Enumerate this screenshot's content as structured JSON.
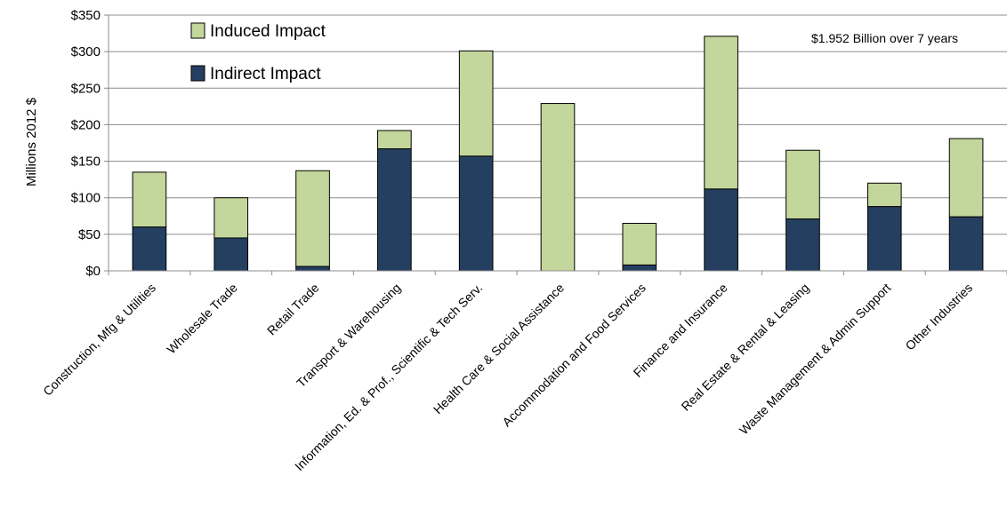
{
  "chart_data": {
    "type": "bar",
    "stacked": true,
    "ylabel": "Millions 2012 $",
    "ylim": [
      0,
      350
    ],
    "yticks": [
      "$0",
      "$50",
      "$100",
      "$150",
      "$200",
      "$250",
      "$300",
      "$350"
    ],
    "ytick_values": [
      0,
      50,
      100,
      150,
      200,
      250,
      300,
      350
    ],
    "grid": "horizontal",
    "legend_position": "top-left",
    "annotation": "$1.952 Billion over 7 years",
    "categories": [
      "Construction, Mfg & Utilities",
      "Wholesale Trade",
      "Retail Trade",
      "Transport & Warehousing",
      "Information, Ed. & Prof., Scientific & Tech Serv.",
      "Health Care & Social Assistance",
      "Accommodation and Food Services",
      "Finance and Insurance",
      "Real Estate & Rental & Leasing",
      "Waste Management & Admin Support",
      "Other Industries"
    ],
    "series": [
      {
        "name": "Indirect Impact",
        "color": "#243F60",
        "values": [
          60,
          45,
          6,
          167,
          157,
          0,
          8,
          112,
          71,
          88,
          74
        ]
      },
      {
        "name": "Induced Impact",
        "color": "#C3D69B",
        "values": [
          75,
          55,
          131,
          25,
          144,
          229,
          57,
          209,
          94,
          32,
          107
        ]
      }
    ],
    "legend": [
      {
        "name": "Induced Impact",
        "color": "#C3D69B"
      },
      {
        "name": "Indirect Impact",
        "color": "#243F60"
      }
    ]
  }
}
